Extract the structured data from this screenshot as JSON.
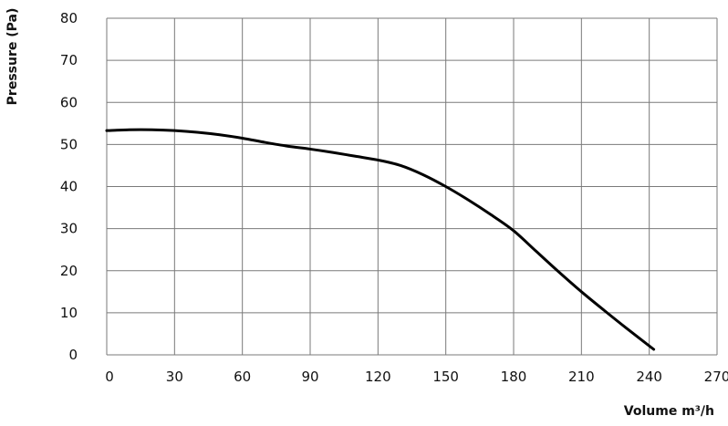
{
  "chart_data": {
    "type": "line",
    "title": "",
    "xlabel": "Volume m³/h",
    "ylabel": "Pressure (Pa)",
    "xlim": [
      0,
      270
    ],
    "ylim": [
      0,
      80
    ],
    "x_ticks": [
      "0",
      "30",
      "60",
      "90",
      "120",
      "150",
      "180",
      "210",
      "240",
      "270"
    ],
    "y_ticks": [
      "0",
      "10",
      "20",
      "30",
      "40",
      "50",
      "60",
      "70",
      "80"
    ],
    "grid": true,
    "legend": "none",
    "series": [
      {
        "color": "#000000",
        "x": [
          0,
          10,
          20,
          30,
          40,
          50,
          60,
          70,
          80,
          90,
          100,
          110,
          120,
          130,
          140,
          150,
          160,
          170,
          180,
          190,
          200,
          210,
          220,
          230,
          242
        ],
        "y": [
          53.3,
          53.5,
          53.5,
          53.3,
          52.9,
          52.3,
          51.5,
          50.5,
          49.6,
          48.9,
          48.1,
          47.2,
          46.3,
          45.0,
          42.8,
          40.0,
          36.8,
          33.3,
          29.5,
          24.6,
          19.7,
          15.0,
          10.6,
          6.3,
          1.3
        ]
      }
    ]
  }
}
